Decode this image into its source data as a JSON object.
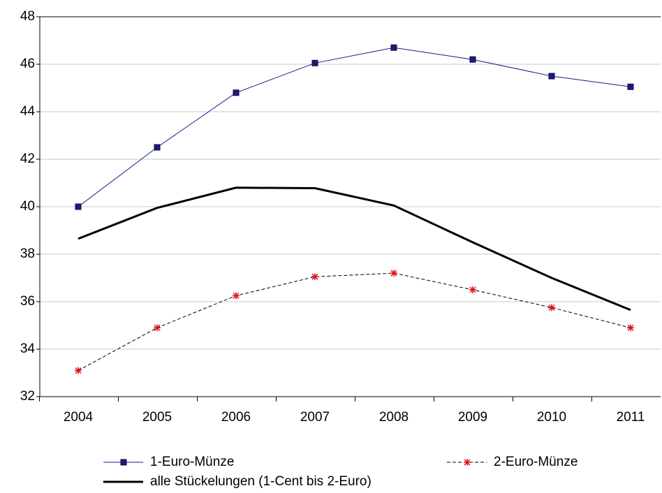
{
  "chart_data": {
    "type": "line",
    "categories": [
      "2004",
      "2005",
      "2006",
      "2007",
      "2008",
      "2009",
      "2010",
      "2011"
    ],
    "series": [
      {
        "name": "1-Euro-Münze",
        "color": "#1a1a80",
        "marker": "square",
        "dash": false,
        "width": 1,
        "values": [
          40.0,
          42.5,
          44.8,
          46.05,
          46.7,
          46.2,
          45.5,
          45.05
        ]
      },
      {
        "name": "2-Euro-Münze",
        "color": "#e01010",
        "marker": "star",
        "dash": true,
        "width": 1,
        "values": [
          33.1,
          34.9,
          36.25,
          37.05,
          37.2,
          36.5,
          35.75,
          34.9
        ]
      },
      {
        "name": "alle Stückelungen (1-Cent bis 2-Euro)",
        "color": "#000000",
        "marker": "none",
        "dash": false,
        "width": 3,
        "values": [
          38.65,
          39.95,
          40.8,
          40.78,
          40.05,
          38.5,
          37.0,
          35.65
        ]
      }
    ],
    "ylim": [
      32,
      48
    ],
    "yticks": [
      32,
      34,
      36,
      38,
      40,
      42,
      44,
      46,
      48
    ],
    "grid": true
  }
}
